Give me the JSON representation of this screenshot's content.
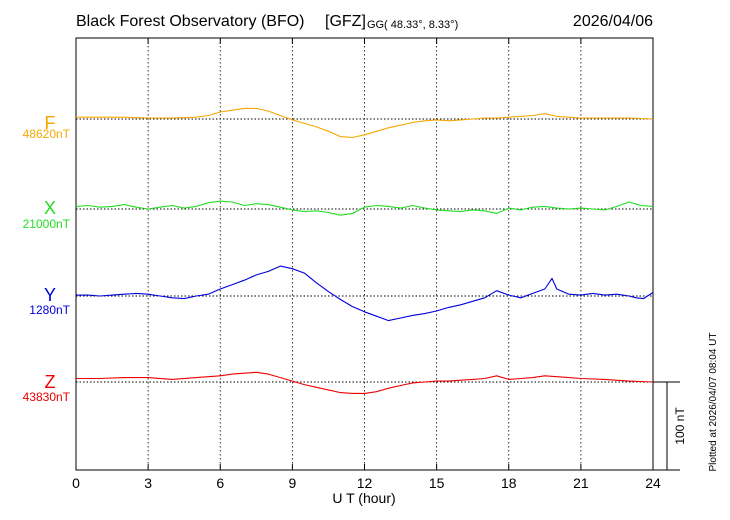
{
  "header": {
    "title": "Black Forest Observatory (BFO)",
    "source": "[GFZ]",
    "coord_prefix": "GG",
    "coordinates": "( 48.33°,   8.33°)",
    "date": "2026/04/06"
  },
  "x_axis": {
    "title": "U T (hour)",
    "ticks": [
      0,
      3,
      6,
      9,
      12,
      15,
      18,
      21,
      24
    ],
    "tick_labels": [
      "0",
      "3",
      "6",
      "9",
      "12",
      "15",
      "18",
      "21",
      "24"
    ]
  },
  "plotted_note": "Plotted at 2026/04/07 08:04 UT",
  "scale_bar": {
    "label": "100 nT",
    "value_nT": 100
  },
  "chart_data": {
    "type": "line",
    "title": "Black Forest Observatory (BFO) [GFZ]",
    "xlabel": "U T (hour)",
    "ylabel": "",
    "xlim": [
      0,
      24
    ],
    "grid": true,
    "scale_nT_per_bar": 100,
    "series": [
      {
        "name": "F",
        "baseline_label": "48620nT",
        "baseline_nT": 48620,
        "color": "#f5a800",
        "x": [
          0,
          1,
          2,
          3,
          4,
          5,
          5.5,
          6,
          6.5,
          7,
          7.5,
          8,
          8.5,
          9,
          9.5,
          10,
          10.5,
          11,
          11.5,
          12,
          12.5,
          13,
          13.5,
          14,
          14.5,
          15,
          15.5,
          16,
          16.5,
          17,
          17.5,
          18,
          18.5,
          19,
          19.5,
          20,
          20.5,
          21,
          22,
          23,
          24
        ],
        "values": [
          2,
          2,
          2,
          1,
          1,
          2,
          4,
          8,
          10,
          12,
          12,
          9,
          4,
          -1,
          -5,
          -9,
          -14,
          -20,
          -21,
          -18,
          -14,
          -10,
          -7,
          -4,
          -2,
          -1,
          -2,
          -1,
          0,
          1,
          1,
          2,
          3,
          4,
          6,
          3,
          2,
          1,
          1,
          1,
          0
        ]
      },
      {
        "name": "X",
        "baseline_label": "21000nT",
        "baseline_nT": 21000,
        "color": "#22dd22",
        "x": [
          0,
          0.5,
          1,
          1.5,
          2,
          2.5,
          3,
          3.5,
          4,
          4.5,
          5,
          5.5,
          6,
          6.5,
          7,
          7.5,
          8,
          8.5,
          9,
          9.5,
          10,
          10.5,
          11,
          11.5,
          12,
          12.5,
          13,
          13.5,
          14,
          14.5,
          15,
          15.5,
          16,
          16.5,
          17,
          17.5,
          18,
          18.5,
          19,
          19.5,
          20,
          20.5,
          21,
          21.5,
          22,
          22.5,
          23,
          23.5,
          24
        ],
        "values": [
          3,
          4,
          2,
          3,
          5,
          2,
          0,
          2,
          4,
          1,
          3,
          7,
          9,
          8,
          4,
          6,
          5,
          2,
          -1,
          -3,
          -2,
          -4,
          -7,
          -5,
          2,
          4,
          3,
          1,
          4,
          1,
          -1,
          -2,
          -3,
          -1,
          -2,
          -5,
          1,
          -1,
          2,
          3,
          1,
          0,
          1,
          0,
          -1,
          3,
          8,
          4,
          3
        ]
      },
      {
        "name": "Y",
        "baseline_label": "1280nT",
        "baseline_nT": 1280,
        "color": "#0000dd",
        "x": [
          0,
          0.5,
          1,
          1.5,
          2,
          2.5,
          3,
          3.5,
          4,
          4.5,
          5,
          5.5,
          6,
          6.5,
          7,
          7.5,
          8,
          8.5,
          9,
          9.5,
          10,
          10.5,
          11,
          11.5,
          12,
          12.5,
          13,
          13.5,
          14,
          14.5,
          15,
          15.5,
          16,
          16.5,
          17,
          17.5,
          18,
          18.5,
          19,
          19.5,
          19.8,
          20,
          20.5,
          21,
          21.5,
          22,
          22.5,
          23,
          23.3,
          23.6,
          24
        ],
        "values": [
          1,
          1,
          0,
          1,
          2,
          3,
          2,
          0,
          -2,
          -3,
          0,
          2,
          8,
          13,
          18,
          24,
          28,
          34,
          31,
          26,
          15,
          5,
          -4,
          -12,
          -18,
          -23,
          -28,
          -25,
          -22,
          -20,
          -17,
          -13,
          -10,
          -6,
          -2,
          6,
          1,
          -2,
          3,
          8,
          20,
          8,
          2,
          1,
          3,
          1,
          2,
          0,
          -2,
          -3,
          4
        ]
      },
      {
        "name": "Z",
        "baseline_label": "43830nT",
        "baseline_nT": 43830,
        "color": "#ee0000",
        "x": [
          0,
          1,
          2,
          3,
          4,
          5,
          6,
          6.5,
          7,
          7.5,
          8,
          8.5,
          9,
          9.5,
          10,
          10.5,
          11,
          11.5,
          12,
          12.5,
          13,
          13.5,
          14,
          14.5,
          15,
          15.5,
          16,
          16.5,
          17,
          17.5,
          18,
          18.5,
          19,
          19.5,
          20,
          20.5,
          21,
          22,
          23,
          24
        ],
        "values": [
          4,
          4,
          5,
          5,
          3,
          5,
          7,
          9,
          10,
          11,
          9,
          5,
          1,
          -3,
          -6,
          -9,
          -12,
          -13,
          -13,
          -11,
          -7,
          -4,
          -1,
          0,
          1,
          1,
          2,
          3,
          4,
          7,
          3,
          4,
          5,
          7,
          6,
          5,
          4,
          3,
          1,
          0
        ]
      }
    ]
  }
}
